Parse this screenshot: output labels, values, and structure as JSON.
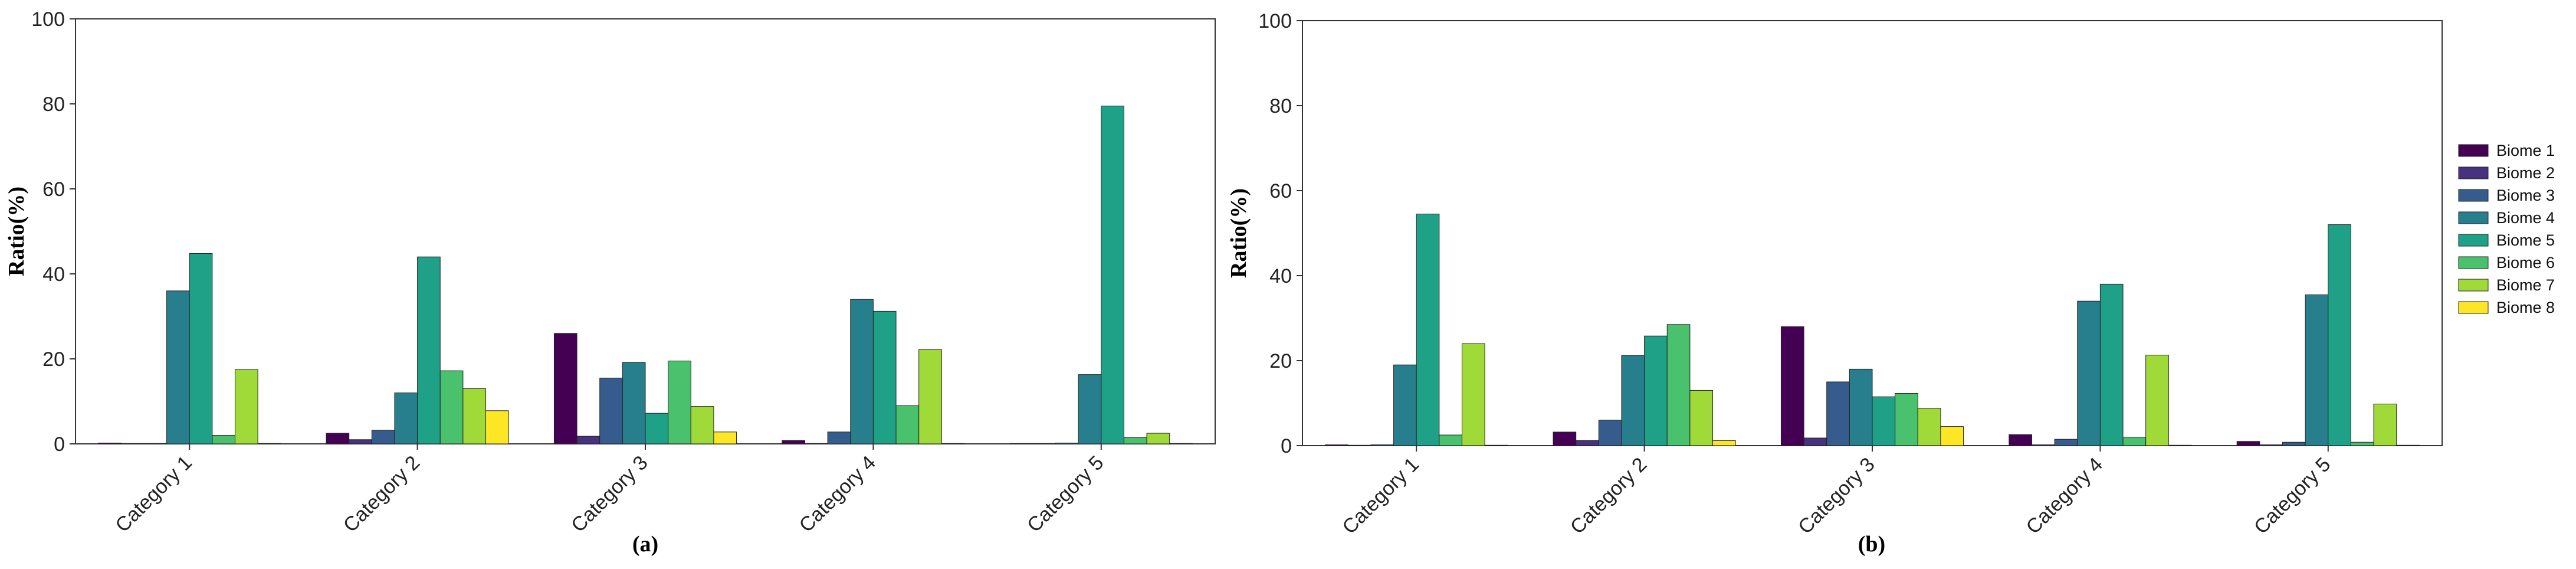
{
  "chart_data": [
    {
      "type": "bar",
      "caption": "(a)",
      "ylabel": "Ratio(%)",
      "xlabel": "",
      "ylim": [
        0,
        100
      ],
      "yticks": [
        0,
        20,
        40,
        60,
        80,
        100
      ],
      "grid": false,
      "categories": [
        "Category 1",
        "Category 2",
        "Category 3",
        "Category 4",
        "Category 5"
      ],
      "series": [
        {
          "name": "Biome 1",
          "values": [
            0.2,
            2.5,
            26,
            0.8,
            0.1
          ]
        },
        {
          "name": "Biome 2",
          "values": [
            0.1,
            1.0,
            1.8,
            0.1,
            0.1
          ]
        },
        {
          "name": "Biome 3",
          "values": [
            0.1,
            3.2,
            15.5,
            2.8,
            0.2
          ]
        },
        {
          "name": "Biome 4",
          "values": [
            36,
            12,
            19.2,
            34,
            16.3
          ]
        },
        {
          "name": "Biome 5",
          "values": [
            44.8,
            44,
            7.2,
            31.2,
            79.5
          ]
        },
        {
          "name": "Biome 6",
          "values": [
            2,
            17.2,
            19.5,
            9,
            1.5
          ]
        },
        {
          "name": "Biome 7",
          "values": [
            17.5,
            13,
            8.8,
            22.2,
            2.5
          ]
        },
        {
          "name": "Biome 8",
          "values": [
            0.1,
            7.8,
            2.8,
            0.1,
            0.1
          ]
        }
      ]
    },
    {
      "type": "bar",
      "caption": "(b)",
      "ylabel": "Ratio(%)",
      "xlabel": "",
      "ylim": [
        0,
        100
      ],
      "yticks": [
        0,
        20,
        40,
        60,
        80,
        100
      ],
      "grid": false,
      "legend": "right",
      "categories": [
        "Category 1",
        "Category 2",
        "Category 3",
        "Category 4",
        "Category 5"
      ],
      "series": [
        {
          "name": "Biome 1",
          "values": [
            0.2,
            3.2,
            28,
            2.6,
            1.0
          ]
        },
        {
          "name": "Biome 2",
          "values": [
            0.1,
            1.2,
            1.8,
            0.2,
            0.2
          ]
        },
        {
          "name": "Biome 3",
          "values": [
            0.2,
            6.0,
            15,
            1.5,
            0.8
          ]
        },
        {
          "name": "Biome 4",
          "values": [
            19,
            21.2,
            18,
            34,
            35.5
          ]
        },
        {
          "name": "Biome 5",
          "values": [
            54.5,
            25.8,
            11.5,
            38,
            52
          ]
        },
        {
          "name": "Biome 6",
          "values": [
            2.5,
            28.5,
            12.3,
            2,
            0.8
          ]
        },
        {
          "name": "Biome 7",
          "values": [
            24,
            13,
            8.8,
            21.3,
            9.8
          ]
        },
        {
          "name": "Biome 8",
          "values": [
            0.1,
            1.2,
            4.5,
            0.1,
            0.1
          ]
        }
      ]
    }
  ],
  "legend": {
    "items": [
      {
        "label": "Biome 1",
        "color": "#440154"
      },
      {
        "label": "Biome 2",
        "color": "#46327e"
      },
      {
        "label": "Biome 3",
        "color": "#365c8d"
      },
      {
        "label": "Biome 4",
        "color": "#277f8e"
      },
      {
        "label": "Biome 5",
        "color": "#1fa187"
      },
      {
        "label": "Biome 6",
        "color": "#4ac16d"
      },
      {
        "label": "Biome 7",
        "color": "#a0da39"
      },
      {
        "label": "Biome 8",
        "color": "#fde725"
      }
    ]
  }
}
